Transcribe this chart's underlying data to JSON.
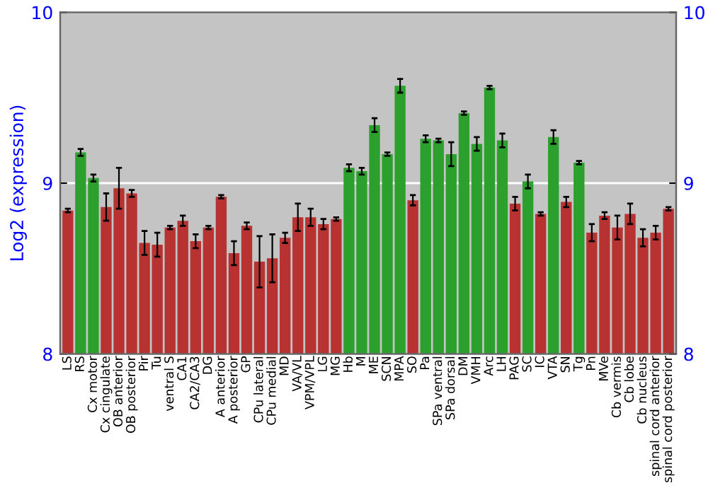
{
  "chart_data": {
    "type": "bar",
    "ylabel": "Log2 (expression)",
    "categories": [
      "LS",
      "RS",
      "Cx motor",
      "Cx cingulate",
      "OB anterior",
      "OB posterior",
      "Pir",
      "Tu",
      "ventral S",
      "CA1",
      "CA2/CA3",
      "DG",
      "A anterior",
      "A posterior",
      "GP",
      "CPu lateral",
      "CPu medial",
      "MD",
      "VA/VL",
      "VPM/VPL",
      "LG",
      "MG",
      "Hb",
      "M",
      "ME",
      "SCN",
      "MPA",
      "SO",
      "Pa",
      "SPa ventral",
      "SPa dorsal",
      "DM",
      "VMH",
      "Arc",
      "LH",
      "PAG",
      "SC",
      "IC",
      "VTA",
      "SN",
      "Tg",
      "Pn",
      "MVe",
      "Cb vermis",
      "Cb lobe",
      "Cb nucleus",
      "spinal cord anterior",
      "spinal cord posterior"
    ],
    "values": [
      8.84,
      9.18,
      9.03,
      8.86,
      8.97,
      8.94,
      8.65,
      8.64,
      8.74,
      8.78,
      8.66,
      8.74,
      8.92,
      8.59,
      8.75,
      8.54,
      8.56,
      8.68,
      8.8,
      8.8,
      8.76,
      8.79,
      9.09,
      9.07,
      9.34,
      9.17,
      9.57,
      8.9,
      9.26,
      9.25,
      9.17,
      9.41,
      9.23,
      9.56,
      9.25,
      8.88,
      9.01,
      8.82,
      9.27,
      8.89,
      9.12,
      8.71,
      8.81,
      8.74,
      8.82,
      8.68,
      8.71,
      8.85
    ],
    "errors": [
      0.01,
      0.02,
      0.02,
      0.08,
      0.12,
      0.02,
      0.07,
      0.07,
      0.01,
      0.03,
      0.04,
      0.01,
      0.01,
      0.07,
      0.02,
      0.15,
      0.14,
      0.03,
      0.08,
      0.05,
      0.03,
      0.01,
      0.02,
      0.02,
      0.04,
      0.01,
      0.04,
      0.03,
      0.02,
      0.01,
      0.07,
      0.01,
      0.04,
      0.01,
      0.04,
      0.04,
      0.04,
      0.01,
      0.04,
      0.03,
      0.01,
      0.05,
      0.02,
      0.07,
      0.06,
      0.05,
      0.04,
      0.01
    ],
    "colors": [
      "#b83232",
      "#2ca02c",
      "#2ca02c",
      "#b83232",
      "#b83232",
      "#b83232",
      "#b83232",
      "#b83232",
      "#b83232",
      "#b83232",
      "#b83232",
      "#b83232",
      "#b83232",
      "#b83232",
      "#b83232",
      "#b83232",
      "#b83232",
      "#b83232",
      "#b83232",
      "#b83232",
      "#b83232",
      "#b83232",
      "#2ca02c",
      "#2ca02c",
      "#2ca02c",
      "#2ca02c",
      "#2ca02c",
      "#b83232",
      "#2ca02c",
      "#2ca02c",
      "#2ca02c",
      "#2ca02c",
      "#2ca02c",
      "#2ca02c",
      "#2ca02c",
      "#b83232",
      "#2ca02c",
      "#b83232",
      "#2ca02c",
      "#b83232",
      "#2ca02c",
      "#b83232",
      "#b83232",
      "#b83232",
      "#b83232",
      "#b83232",
      "#b83232",
      "#b83232"
    ],
    "ylim": [
      8,
      10
    ],
    "yticks": [
      8,
      9,
      10
    ],
    "y2lim": [
      8,
      10
    ],
    "y2ticks": [
      8,
      9,
      10
    ],
    "grid": "y"
  }
}
